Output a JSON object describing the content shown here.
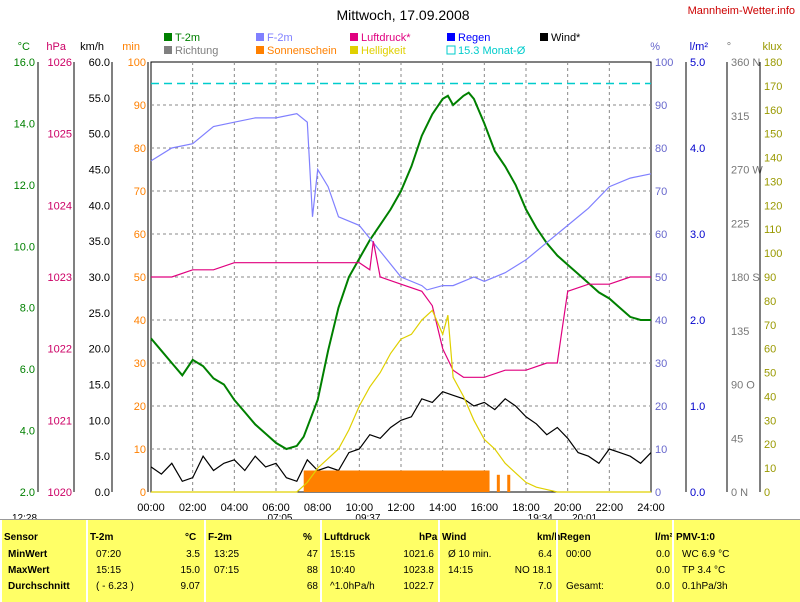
{
  "chart_data": {
    "type": "line",
    "title": "Mittwoch, 17.09.2008",
    "brand": "Mannheim-Wetter.info",
    "x_ticks": [
      "00:00",
      "02:00",
      "04:00",
      "06:00",
      "08:00",
      "10:00",
      "12:00",
      "14:00",
      "16:00",
      "18:00",
      "20:00",
      "22:00",
      "24:00"
    ],
    "axes": {
      "temp": {
        "unit": "°C",
        "ticks": [
          "16.0",
          "14.0",
          "12.0",
          "10.0",
          "8.0",
          "6.0",
          "4.0",
          "2.0"
        ],
        "color": "#008000"
      },
      "pressure": {
        "unit": "hPa",
        "ticks": [
          "1026",
          "1025",
          "1024",
          "1023",
          "1022",
          "1021",
          "1020"
        ],
        "color": "#cc0066"
      },
      "wind": {
        "unit": "km/h",
        "ticks": [
          "60.0",
          "55.0",
          "50.0",
          "45.0",
          "40.0",
          "35.0",
          "30.0",
          "25.0",
          "20.0",
          "15.0",
          "10.0",
          "5.0",
          "0.0"
        ],
        "color": "#000000"
      },
      "sun": {
        "unit": "min",
        "ticks": [
          "100",
          "90",
          "80",
          "70",
          "60",
          "50",
          "40",
          "30",
          "20",
          "10",
          "0"
        ],
        "color": "#ff8000"
      },
      "humidity": {
        "unit": "%",
        "ticks": [
          "100",
          "90",
          "80",
          "70",
          "60",
          "50",
          "40",
          "30",
          "20",
          "10",
          "0"
        ],
        "color": "#6666cc"
      },
      "rain": {
        "unit": "l/m²",
        "ticks": [
          "5.0",
          "4.0",
          "3.0",
          "2.0",
          "1.0",
          "0.0"
        ],
        "color": "#0000cc"
      },
      "direction": {
        "unit": "°",
        "ticks": [
          "360 N",
          "315",
          "270 W",
          "225",
          "180 S",
          "135",
          "90 O",
          "45",
          "0 N"
        ],
        "color": "#777777"
      },
      "light": {
        "unit": "klux",
        "ticks": [
          "180",
          "170",
          "160",
          "150",
          "140",
          "130",
          "120",
          "110",
          "100",
          "90",
          "80",
          "70",
          "60",
          "50",
          "40",
          "30",
          "20",
          "10",
          "0"
        ],
        "color": "#999900"
      }
    },
    "legend": [
      {
        "label": "T-2m",
        "color": "#008000"
      },
      {
        "label": "F-2m",
        "color": "#8080ff"
      },
      {
        "label": "Luftdruck*",
        "color": "#e0007f"
      },
      {
        "label": "Regen",
        "color": "#0000ff"
      },
      {
        "label": "Wind*",
        "color": "#000000"
      },
      {
        "label": "Richtung",
        "color": "#808080"
      },
      {
        "label": "Sonnenschein",
        "color": "#ff8000"
      },
      {
        "label": "Helligkeit",
        "color": "#e0d000"
      },
      {
        "label": "15.3 Monat-Ø",
        "color": "#00cccc"
      }
    ],
    "series": [
      {
        "name": "T-2m",
        "axis": "temp",
        "x": [
          0,
          0.5,
          1,
          1.5,
          2,
          2.5,
          3,
          3.5,
          4,
          4.5,
          5,
          5.5,
          6,
          6.5,
          7,
          7.33,
          8,
          8.5,
          9,
          9.5,
          10,
          10.5,
          11,
          11.5,
          12,
          12.5,
          13,
          13.5,
          14,
          14.25,
          14.5,
          15,
          15.25,
          15.5,
          16,
          16.5,
          17,
          17.5,
          18,
          18.5,
          19,
          19.5,
          20,
          20.5,
          21,
          21.5,
          22,
          22.5,
          23,
          23.5,
          24
        ],
        "y": [
          7.0,
          6.6,
          6.2,
          5.8,
          6.3,
          6.1,
          5.7,
          5.5,
          5.0,
          4.6,
          4.2,
          3.9,
          3.6,
          3.4,
          3.5,
          3.8,
          5.0,
          6.6,
          8.0,
          9.0,
          9.6,
          10.2,
          10.7,
          11.2,
          11.8,
          12.6,
          13.6,
          14.3,
          14.8,
          14.9,
          14.6,
          14.9,
          15.0,
          14.8,
          14.0,
          13.1,
          12.6,
          12.0,
          11.2,
          10.6,
          10.1,
          9.7,
          9.4,
          9.1,
          8.8,
          8.5,
          8.3,
          8.0,
          7.7,
          7.6,
          7.6
        ]
      },
      {
        "name": "F-2m",
        "axis": "humidity",
        "x": [
          0,
          1,
          2,
          3,
          4,
          5,
          6,
          7,
          7.5,
          7.75,
          8,
          8.5,
          9,
          10,
          11,
          12,
          13,
          13.25,
          14,
          14.5,
          15,
          15.5,
          16,
          17,
          18,
          19,
          20,
          21,
          22,
          23,
          24
        ],
        "y": [
          77,
          80,
          81,
          85,
          86,
          87,
          87,
          88,
          86,
          64,
          75,
          71,
          64,
          62,
          56,
          50,
          48,
          47,
          48,
          48,
          49,
          50,
          49,
          51,
          54,
          58,
          62,
          66,
          71,
          73,
          74
        ]
      },
      {
        "name": "Luftdruck*",
        "axis": "pressure",
        "x": [
          0,
          1,
          2,
          3,
          4,
          5,
          6,
          7,
          8,
          9,
          10,
          10.5,
          10.67,
          11,
          12,
          13,
          13.5,
          14,
          14.5,
          15,
          15.5,
          16,
          17,
          18,
          19,
          19.5,
          19.7,
          20,
          21,
          22,
          23,
          24
        ],
        "y": [
          1023.0,
          1023.0,
          1023.1,
          1023.1,
          1023.2,
          1023.2,
          1023.2,
          1023.2,
          1023.2,
          1023.2,
          1023.2,
          1023.1,
          1023.5,
          1023.0,
          1022.9,
          1022.8,
          1022.6,
          1022.0,
          1021.7,
          1021.6,
          1021.6,
          1021.6,
          1021.7,
          1021.7,
          1021.8,
          1021.8,
          1022.2,
          1022.8,
          1022.9,
          1022.9,
          1023.0,
          1023.0
        ]
      },
      {
        "name": "Wind*",
        "axis": "wind",
        "x": [
          0,
          0.5,
          1,
          1.5,
          2,
          2.5,
          3,
          3.5,
          4,
          4.5,
          5,
          5.5,
          6,
          6.5,
          7,
          7.5,
          8,
          8.5,
          9,
          9.5,
          10,
          10.5,
          11,
          11.5,
          12,
          12.5,
          13,
          13.5,
          14,
          14.5,
          15,
          15.5,
          16,
          16.5,
          17,
          17.5,
          18,
          18.5,
          19,
          19.5,
          20,
          20.5,
          21,
          21.5,
          22,
          22.5,
          23,
          23.5,
          24
        ],
        "y": [
          3.5,
          2.5,
          4.0,
          1.5,
          2.0,
          5.0,
          3.0,
          4.0,
          4.5,
          3.0,
          5.0,
          3.5,
          4.0,
          2.0,
          1.5,
          4.5,
          3.0,
          3.5,
          3.0,
          5.5,
          6.0,
          8.0,
          7.5,
          9.0,
          10.0,
          10.5,
          13.0,
          12.5,
          14.0,
          13.5,
          13.0,
          12.0,
          12.5,
          11.5,
          13.0,
          12.0,
          10.5,
          9.5,
          8.0,
          9.0,
          7.5,
          5.5,
          5.0,
          4.0,
          6.0,
          5.5,
          5.0,
          4.0,
          5.5
        ]
      },
      {
        "name": "Sonnenschein",
        "axis": "sun",
        "type": "bar",
        "x_start": 7.33,
        "x_end": 16.25,
        "value": 5,
        "extra": [
          {
            "x": 16.6,
            "value": 4
          },
          {
            "x": 17.1,
            "value": 4
          }
        ]
      },
      {
        "name": "Helligkeit",
        "axis": "light",
        "x": [
          0,
          7,
          7.5,
          8,
          8.5,
          9,
          9.5,
          10,
          10.5,
          11,
          11.5,
          12,
          12.5,
          13,
          13.5,
          14,
          14.25,
          14.5,
          15,
          15.5,
          16,
          16.5,
          17,
          17.5,
          18,
          18.5,
          19,
          19.5,
          20,
          24
        ],
        "y": [
          0,
          0,
          4,
          10,
          14,
          18,
          26,
          36,
          44,
          50,
          58,
          64,
          66,
          72,
          76,
          66,
          74,
          48,
          40,
          30,
          22,
          18,
          12,
          8,
          4,
          2,
          1,
          0,
          0,
          0
        ]
      },
      {
        "name": "15.3 Monat-Ø",
        "axis": "temp",
        "type": "hline",
        "value": 15.3
      }
    ],
    "markers": {
      "sunrise": "07:05",
      "sunset": "19:34",
      "civil_dawn": "09:37",
      "civil_dusk": "20:01",
      "left_time": "12:28"
    }
  },
  "stats": {
    "columns": [
      {
        "title": "Sensor",
        "unit": "",
        "rows": [
          "MinWert",
          "MaxWert",
          "Durchschnitt"
        ]
      },
      {
        "title": "T-2m",
        "unit": "°C",
        "rows": [
          [
            "07:20",
            "3.5"
          ],
          [
            "15:15",
            "15.0"
          ],
          [
            "( - 6.23 )",
            "9.07"
          ]
        ]
      },
      {
        "title": "F-2m",
        "unit": "%",
        "rows": [
          [
            "13:25",
            "47"
          ],
          [
            "07:15",
            "88"
          ],
          [
            "",
            "68"
          ]
        ]
      },
      {
        "title": "Luftdruck",
        "unit": "hPa",
        "rows": [
          [
            "15:15",
            "1021.6"
          ],
          [
            "10:40",
            "1023.8"
          ],
          [
            "^1.0hPa/h",
            "1022.7"
          ]
        ]
      },
      {
        "title": "Wind",
        "unit": "km/h",
        "rows": [
          [
            "Ø 10 min.",
            "6.4"
          ],
          [
            "14:15",
            "NO 18.1"
          ],
          [
            "",
            "7.0"
          ]
        ]
      },
      {
        "title": "Regen",
        "unit": "l/m²",
        "rows": [
          [
            "00:00",
            "0.0"
          ],
          [
            "",
            "0.0"
          ],
          [
            "Gesamt:",
            "0.0"
          ]
        ]
      },
      {
        "title": "PMV-1:0",
        "unit": "",
        "rows": [
          "WC 6.9 °C",
          "TP 3.4 °C",
          "0.1hPa/3h"
        ]
      }
    ]
  }
}
